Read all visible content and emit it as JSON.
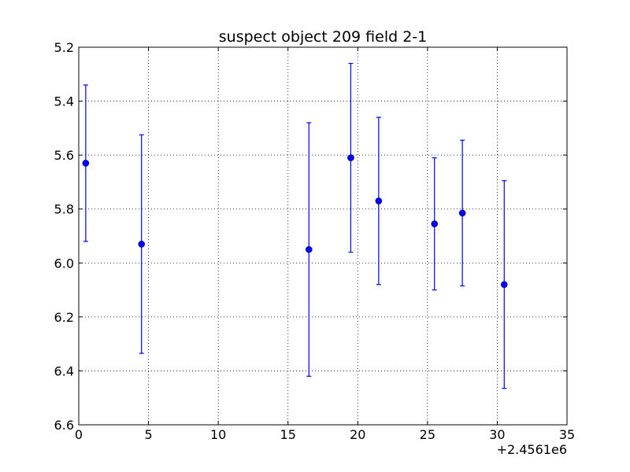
{
  "chart_data": {
    "type": "scatter",
    "title": "suspect object 209 field 2-1",
    "xlabel": "",
    "ylabel": "",
    "x_offset_label": "+2.4561e6",
    "xlim": [
      0,
      35
    ],
    "ylim": [
      6.6,
      5.2
    ],
    "y_inverted": true,
    "grid": true,
    "xticks": [
      0,
      5,
      10,
      15,
      20,
      25,
      30,
      35
    ],
    "xtick_labels": [
      "0",
      "5",
      "10",
      "15",
      "20",
      "25",
      "30",
      "35"
    ],
    "yticks": [
      5.2,
      5.4,
      5.6,
      5.8,
      6.0,
      6.2,
      6.4,
      6.6
    ],
    "ytick_labels": [
      "5.2",
      "5.4",
      "5.6",
      "5.8",
      "6.0",
      "6.2",
      "6.4",
      "6.6"
    ],
    "marker_color": "#0000ff",
    "series": [
      {
        "points": [
          {
            "x": 0.5,
            "y": 5.63,
            "err": 0.29
          },
          {
            "x": 4.5,
            "y": 5.93,
            "err": 0.405
          },
          {
            "x": 16.5,
            "y": 5.95,
            "err": 0.47
          },
          {
            "x": 19.5,
            "y": 5.61,
            "err": 0.35
          },
          {
            "x": 21.5,
            "y": 5.77,
            "err": 0.31
          },
          {
            "x": 25.5,
            "y": 5.855,
            "err": 0.245
          },
          {
            "x": 27.5,
            "y": 5.815,
            "err": 0.27
          },
          {
            "x": 30.5,
            "y": 6.08,
            "err": 0.385
          }
        ]
      }
    ]
  }
}
